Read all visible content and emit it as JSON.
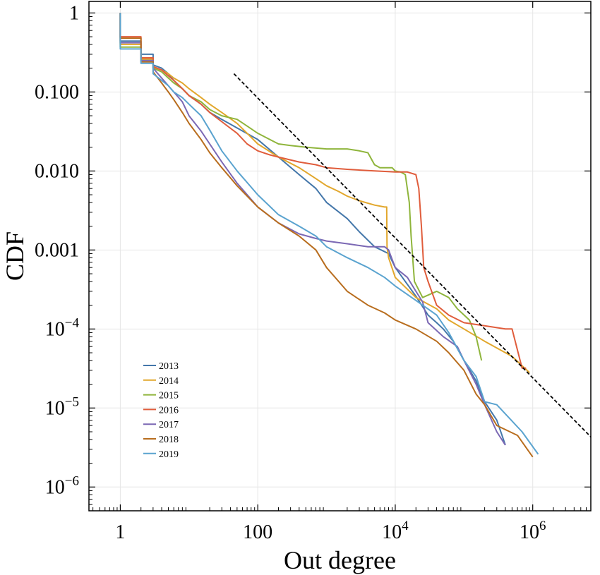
{
  "chart_data": {
    "type": "line",
    "xscale": "log",
    "yscale": "log",
    "xlabel": "Out degree",
    "ylabel": "CDF",
    "xlim": [
      0.35,
      7000000
    ],
    "ylim": [
      5e-07,
      1.4
    ],
    "grid": true,
    "legend_position": "bottom-left",
    "x_ticks": [
      {
        "value": 1,
        "label": "1",
        "base": "",
        "exp": ""
      },
      {
        "value": 100,
        "label": "100",
        "base": "",
        "exp": ""
      },
      {
        "value": 10000,
        "label": "",
        "base": "10",
        "exp": "4"
      },
      {
        "value": 1000000,
        "label": "",
        "base": "10",
        "exp": "6"
      }
    ],
    "y_ticks": [
      {
        "value": 1,
        "label": "1",
        "base": "",
        "exp": ""
      },
      {
        "value": 0.1,
        "label": "0.100",
        "base": "",
        "exp": ""
      },
      {
        "value": 0.01,
        "label": "0.010",
        "base": "",
        "exp": ""
      },
      {
        "value": 0.001,
        "label": "0.001",
        "base": "",
        "exp": ""
      },
      {
        "value": 0.0001,
        "label": "",
        "base": "10",
        "exp": "−4"
      },
      {
        "value": 1e-05,
        "label": "",
        "base": "10",
        "exp": "−5"
      },
      {
        "value": 1e-06,
        "label": "",
        "base": "10",
        "exp": "−6"
      }
    ],
    "reference_line": {
      "color": "#000000",
      "dash": true,
      "points": [
        [
          45,
          0.17
        ],
        [
          20000000,
          1.7e-06
        ]
      ]
    },
    "series": [
      {
        "name": "2013",
        "color": "#4477aa",
        "points": [
          [
            1,
            1
          ],
          [
            1,
            0.44
          ],
          [
            2,
            0.44
          ],
          [
            2,
            0.3
          ],
          [
            3,
            0.3
          ],
          [
            3,
            0.22
          ],
          [
            4,
            0.2
          ],
          [
            5,
            0.17
          ],
          [
            6,
            0.14
          ],
          [
            8,
            0.11
          ],
          [
            10,
            0.09
          ],
          [
            15,
            0.07
          ],
          [
            20,
            0.055
          ],
          [
            30,
            0.045
          ],
          [
            50,
            0.035
          ],
          [
            100,
            0.025
          ],
          [
            200,
            0.015
          ],
          [
            400,
            0.009
          ],
          [
            700,
            0.006
          ],
          [
            1000,
            0.004
          ],
          [
            2000,
            0.0025
          ],
          [
            3000,
            0.0017
          ],
          [
            5000,
            0.0011
          ],
          [
            8000,
            0.0009
          ],
          [
            10000,
            0.0006
          ],
          [
            20000,
            0.00026
          ],
          [
            30000,
            0.00015
          ],
          [
            40000,
            0.00012
          ],
          [
            50000,
            0.0001
          ],
          [
            70000,
            7e-05
          ],
          [
            100000,
            4e-05
          ],
          [
            150000,
            2.2e-05
          ],
          [
            200000,
            1.2e-05
          ],
          [
            300000,
            7e-06
          ],
          [
            400000,
            3.4e-06
          ]
        ]
      },
      {
        "name": "2014",
        "color": "#e2a72c",
        "points": [
          [
            1,
            1
          ],
          [
            1,
            0.4
          ],
          [
            2,
            0.4
          ],
          [
            2,
            0.26
          ],
          [
            3,
            0.26
          ],
          [
            3,
            0.2
          ],
          [
            4,
            0.19
          ],
          [
            5,
            0.17
          ],
          [
            6,
            0.15
          ],
          [
            8,
            0.13
          ],
          [
            10,
            0.11
          ],
          [
            15,
            0.085
          ],
          [
            20,
            0.07
          ],
          [
            30,
            0.055
          ],
          [
            50,
            0.04
          ],
          [
            70,
            0.03
          ],
          [
            100,
            0.022
          ],
          [
            200,
            0.015
          ],
          [
            400,
            0.011
          ],
          [
            700,
            0.008
          ],
          [
            1000,
            0.0065
          ],
          [
            1500,
            0.0055
          ],
          [
            2000,
            0.0048
          ],
          [
            3000,
            0.0042
          ],
          [
            5000,
            0.0037
          ],
          [
            7000,
            0.0035
          ],
          [
            7500,
            0.0035
          ],
          [
            7600,
            0.0011
          ],
          [
            8000,
            0.0008
          ],
          [
            10000,
            0.00045
          ],
          [
            20000,
            0.00025
          ],
          [
            40000,
            0.00018
          ],
          [
            60000,
            0.00013
          ],
          [
            100000,
            0.0001
          ],
          [
            200000,
            7e-05
          ],
          [
            500000,
            4.5e-05
          ],
          [
            900000,
            2.8e-05
          ]
        ]
      },
      {
        "name": "2015",
        "color": "#8fb53c",
        "points": [
          [
            1,
            1
          ],
          [
            1,
            0.37
          ],
          [
            2,
            0.37
          ],
          [
            2,
            0.25
          ],
          [
            3,
            0.25
          ],
          [
            3,
            0.2
          ],
          [
            4,
            0.18
          ],
          [
            5,
            0.15
          ],
          [
            6,
            0.13
          ],
          [
            8,
            0.11
          ],
          [
            10,
            0.09
          ],
          [
            15,
            0.075
          ],
          [
            20,
            0.06
          ],
          [
            30,
            0.05
          ],
          [
            50,
            0.045
          ],
          [
            70,
            0.037
          ],
          [
            100,
            0.03
          ],
          [
            150,
            0.025
          ],
          [
            200,
            0.022
          ],
          [
            300,
            0.021
          ],
          [
            500,
            0.02
          ],
          [
            1000,
            0.019
          ],
          [
            2000,
            0.019
          ],
          [
            3000,
            0.018
          ],
          [
            4000,
            0.017
          ],
          [
            5000,
            0.012
          ],
          [
            6000,
            0.011
          ],
          [
            7000,
            0.011
          ],
          [
            9000,
            0.011
          ],
          [
            10000,
            0.01
          ],
          [
            12000,
            0.0097
          ],
          [
            14000,
            0.009
          ],
          [
            16000,
            0.004
          ],
          [
            17000,
            0.0015
          ],
          [
            19000,
            0.0004
          ],
          [
            25000,
            0.00025
          ],
          [
            40000,
            0.0003
          ],
          [
            60000,
            0.00025
          ],
          [
            80000,
            0.00018
          ],
          [
            120000,
            0.00013
          ],
          [
            150000,
            8e-05
          ],
          [
            180000,
            4e-05
          ]
        ]
      },
      {
        "name": "2016",
        "color": "#e05d3c",
        "points": [
          [
            1,
            1
          ],
          [
            1,
            0.5
          ],
          [
            2,
            0.5
          ],
          [
            2,
            0.27
          ],
          [
            3,
            0.27
          ],
          [
            3,
            0.21
          ],
          [
            4,
            0.19
          ],
          [
            5,
            0.16
          ],
          [
            6,
            0.14
          ],
          [
            8,
            0.11
          ],
          [
            10,
            0.09
          ],
          [
            15,
            0.07
          ],
          [
            20,
            0.055
          ],
          [
            30,
            0.042
          ],
          [
            50,
            0.03
          ],
          [
            70,
            0.022
          ],
          [
            100,
            0.018
          ],
          [
            150,
            0.016
          ],
          [
            200,
            0.015
          ],
          [
            400,
            0.013
          ],
          [
            700,
            0.012
          ],
          [
            1000,
            0.011
          ],
          [
            2000,
            0.0105
          ],
          [
            5000,
            0.01
          ],
          [
            10000,
            0.0097
          ],
          [
            15000,
            0.0097
          ],
          [
            20000,
            0.009
          ],
          [
            22000,
            0.006
          ],
          [
            24000,
            0.002
          ],
          [
            26000,
            0.0006
          ],
          [
            30000,
            0.0004
          ],
          [
            40000,
            0.0002
          ],
          [
            60000,
            0.00015
          ],
          [
            100000,
            0.00012
          ],
          [
            200000,
            0.00011
          ],
          [
            400000,
            0.0001
          ],
          [
            500000,
            0.0001
          ],
          [
            700000,
            3.2e-05
          ],
          [
            800000,
            3.2e-05
          ]
        ]
      },
      {
        "name": "2017",
        "color": "#7b68b4",
        "points": [
          [
            1,
            1
          ],
          [
            1,
            0.42
          ],
          [
            2,
            0.42
          ],
          [
            2,
            0.25
          ],
          [
            3,
            0.25
          ],
          [
            3,
            0.2
          ],
          [
            4,
            0.15
          ],
          [
            5,
            0.12
          ],
          [
            6,
            0.1
          ],
          [
            8,
            0.075
          ],
          [
            10,
            0.05
          ],
          [
            15,
            0.032
          ],
          [
            20,
            0.022
          ],
          [
            30,
            0.013
          ],
          [
            50,
            0.007
          ],
          [
            100,
            0.0035
          ],
          [
            200,
            0.0022
          ],
          [
            400,
            0.0016
          ],
          [
            700,
            0.0014
          ],
          [
            1000,
            0.0013
          ],
          [
            2000,
            0.0012
          ],
          [
            4000,
            0.0011
          ],
          [
            7000,
            0.0011
          ],
          [
            8000,
            0.001
          ],
          [
            10000,
            0.0006
          ],
          [
            15000,
            0.00045
          ],
          [
            20000,
            0.0003
          ],
          [
            25000,
            0.00022
          ],
          [
            30000,
            0.00012
          ],
          [
            50000,
            8e-05
          ],
          [
            80000,
            6e-05
          ],
          [
            100000,
            4e-05
          ],
          [
            150000,
            2e-05
          ],
          [
            200000,
            1.1e-05
          ],
          [
            300000,
            5e-06
          ],
          [
            400000,
            3.4e-06
          ]
        ]
      },
      {
        "name": "2018",
        "color": "#b86d1e",
        "points": [
          [
            1,
            1
          ],
          [
            1,
            0.48
          ],
          [
            2,
            0.48
          ],
          [
            2,
            0.24
          ],
          [
            3,
            0.24
          ],
          [
            3,
            0.18
          ],
          [
            4,
            0.13
          ],
          [
            5,
            0.1
          ],
          [
            6,
            0.08
          ],
          [
            8,
            0.055
          ],
          [
            10,
            0.04
          ],
          [
            15,
            0.025
          ],
          [
            20,
            0.017
          ],
          [
            30,
            0.011
          ],
          [
            50,
            0.0065
          ],
          [
            100,
            0.0035
          ],
          [
            200,
            0.0022
          ],
          [
            400,
            0.0015
          ],
          [
            700,
            0.001
          ],
          [
            1000,
            0.0006
          ],
          [
            2000,
            0.0003
          ],
          [
            4000,
            0.0002
          ],
          [
            7000,
            0.00016
          ],
          [
            10000,
            0.00013
          ],
          [
            20000,
            0.0001
          ],
          [
            40000,
            7e-05
          ],
          [
            60000,
            5e-05
          ],
          [
            100000,
            3e-05
          ],
          [
            150000,
            1.5e-05
          ],
          [
            200000,
            1.1e-05
          ],
          [
            300000,
            6e-06
          ],
          [
            600000,
            4.5e-06
          ],
          [
            1000000,
            2.4e-06
          ]
        ]
      },
      {
        "name": "2019",
        "color": "#5aa3cf",
        "points": [
          [
            1,
            1
          ],
          [
            1,
            0.35
          ],
          [
            2,
            0.35
          ],
          [
            2,
            0.23
          ],
          [
            3,
            0.23
          ],
          [
            3,
            0.17
          ],
          [
            4,
            0.14
          ],
          [
            5,
            0.12
          ],
          [
            6,
            0.1
          ],
          [
            8,
            0.085
          ],
          [
            10,
            0.07
          ],
          [
            15,
            0.05
          ],
          [
            20,
            0.033
          ],
          [
            30,
            0.018
          ],
          [
            50,
            0.01
          ],
          [
            100,
            0.005
          ],
          [
            200,
            0.0028
          ],
          [
            400,
            0.002
          ],
          [
            700,
            0.0015
          ],
          [
            1000,
            0.0011
          ],
          [
            2000,
            0.0008
          ],
          [
            4000,
            0.0006
          ],
          [
            7000,
            0.00045
          ],
          [
            10000,
            0.00035
          ],
          [
            20000,
            0.00023
          ],
          [
            40000,
            0.00015
          ],
          [
            60000,
            9e-05
          ],
          [
            100000,
            4e-05
          ],
          [
            150000,
            2.5e-05
          ],
          [
            200000,
            1.2e-05
          ],
          [
            300000,
            1.1e-05
          ],
          [
            700000,
            5e-06
          ],
          [
            1200000,
            2.6e-06
          ]
        ]
      }
    ]
  }
}
